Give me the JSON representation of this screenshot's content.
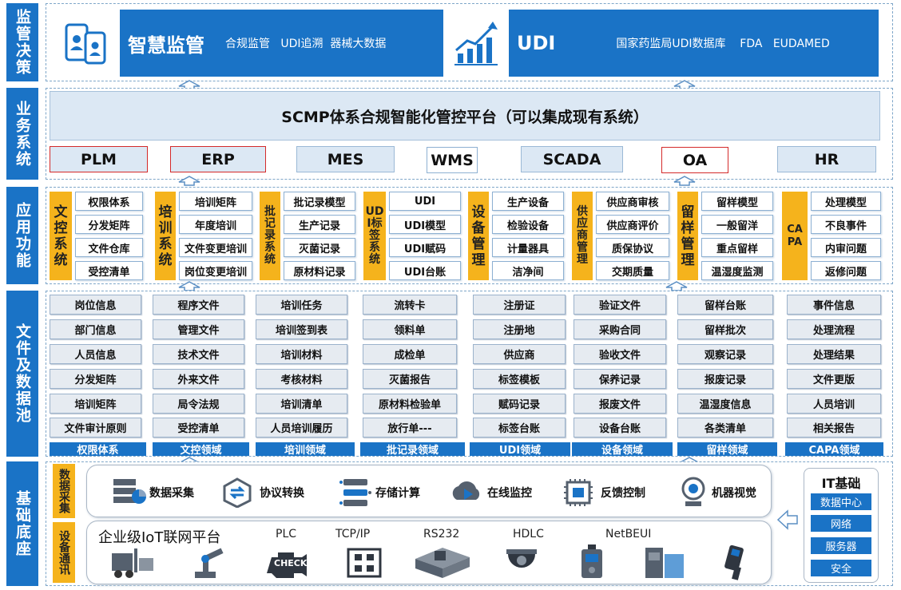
{
  "layers": {
    "l1": "监管决策",
    "l2": "业务系统",
    "l3": "应用功能",
    "l4": "文件及数据池",
    "l5": "基础底座"
  },
  "top": {
    "smart_title": "智慧监管",
    "smart_sub": "合规监管   UDI追溯  器械大数据",
    "udi_title": "UDI",
    "udi_sub": "国家药监局UDI数据库    FDA   EUDAMED"
  },
  "business": {
    "platform": "SCMP体系合规智能化管控平台（可以集成现有系统）",
    "systems": [
      "PLM",
      "ERP",
      "MES",
      "WMS",
      "SCADA",
      "OA",
      "HR"
    ]
  },
  "app": {
    "groups": [
      {
        "title": "文控系统",
        "items": [
          "权限体系",
          "分发矩阵",
          "文件仓库",
          "受控清单"
        ]
      },
      {
        "title": "培训系统",
        "items": [
          "培训矩阵",
          "年度培训",
          "文件变更培训",
          "岗位变更培训"
        ]
      },
      {
        "title": "批记录系统",
        "items": [
          "批记录模型",
          "生产记录",
          "灭菌记录",
          "原材料记录"
        ]
      },
      {
        "title": "UDI标签系统",
        "items": [
          "UDI",
          "UDI模型",
          "UDI赋码",
          "UDI台账"
        ]
      },
      {
        "title": "设备管理",
        "items": [
          "生产设备",
          "检验设备",
          "计量器具",
          "洁净间"
        ]
      },
      {
        "title": "供应商管理",
        "items": [
          "供应商审核",
          "供应商评价",
          "质保协议",
          "交期质量"
        ]
      },
      {
        "title": "留样管理",
        "items": [
          "留样模型",
          "一般留洋",
          "重点留样",
          "温湿度监测"
        ]
      },
      {
        "title": "CAPA",
        "items": [
          "处理模型",
          "不良事件",
          "内审问题",
          "返修问题"
        ]
      }
    ]
  },
  "pool": {
    "columns": [
      {
        "domain": "权限体系",
        "items": [
          "岗位信息",
          "部门信息",
          "人员信息",
          "分发矩阵",
          "培训矩阵",
          "文件审计原则"
        ]
      },
      {
        "domain": "文控领域",
        "items": [
          "程序文件",
          "管理文件",
          "技术文件",
          "外来文件",
          "局令法规",
          "受控清单"
        ]
      },
      {
        "domain": "培训领域",
        "items": [
          "培训任务",
          "培训签到表",
          "培训材料",
          "考核材料",
          "培训清单",
          "人员培训履历"
        ]
      },
      {
        "domain": "批记录领域",
        "items": [
          "流转卡",
          "领料单",
          "成检单",
          "灭菌报告",
          "原材料检验单",
          "放行单---"
        ]
      },
      {
        "domain": "UDI领域",
        "items": [
          "注册证",
          "注册地",
          "供应商",
          "标签模板",
          "赋码记录",
          "标签台账"
        ]
      },
      {
        "domain": "设备领域",
        "items": [
          "验证文件",
          "采购合同",
          "验收文件",
          "保养记录",
          "报废文件",
          "设备台账"
        ]
      },
      {
        "domain": "留样领域",
        "items": [
          "留样台账",
          "留样批次",
          "观察记录",
          "报废记录",
          "温湿度信息",
          "各类清单"
        ]
      },
      {
        "domain": "CAPA领域",
        "items": [
          "事件信息",
          "处理流程",
          "处理结果",
          "文件更版",
          "人员培训",
          "相关报告"
        ]
      }
    ]
  },
  "base": {
    "collect_label": "数据采集",
    "comm_label": "设备通讯",
    "collect_items": [
      "数据采集",
      "协议转换",
      "存储计算",
      "在线监控",
      "反馈控制",
      "机器视觉"
    ],
    "iot_title": "企业级IoT联网平台",
    "protocols": [
      "PLC",
      "TCP/IP",
      "RS232",
      "HDLC",
      "NetBEUI"
    ],
    "check_text": "CHECK",
    "it_title": "IT基础",
    "it_items": [
      "数据中心",
      "网络",
      "服务器",
      "安全"
    ]
  },
  "colors": {
    "primary": "#1a73c6",
    "gold": "#f5b31c",
    "red_border": "#d42a2a"
  }
}
